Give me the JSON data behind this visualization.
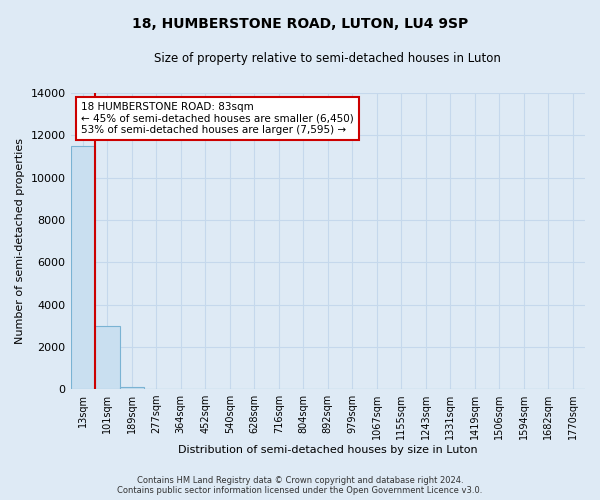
{
  "title": "18, HUMBERSTONE ROAD, LUTON, LU4 9SP",
  "subtitle": "Size of property relative to semi-detached houses in Luton",
  "xlabel": "Distribution of semi-detached houses by size in Luton",
  "ylabel": "Number of semi-detached properties",
  "bar_labels": [
    "13sqm",
    "101sqm",
    "189sqm",
    "277sqm",
    "364sqm",
    "452sqm",
    "540sqm",
    "628sqm",
    "716sqm",
    "804sqm",
    "892sqm",
    "979sqm",
    "1067sqm",
    "1155sqm",
    "1243sqm",
    "1331sqm",
    "1419sqm",
    "1506sqm",
    "1594sqm",
    "1682sqm",
    "1770sqm"
  ],
  "bar_values": [
    11500,
    3000,
    100,
    0,
    0,
    0,
    0,
    0,
    0,
    0,
    0,
    0,
    0,
    0,
    0,
    0,
    0,
    0,
    0,
    0,
    0
  ],
  "bar_color": "#c9dff0",
  "bar_edge_color": "#7ab3d3",
  "ylim": [
    0,
    14000
  ],
  "yticks": [
    0,
    2000,
    4000,
    6000,
    8000,
    10000,
    12000,
    14000
  ],
  "property_line_x": 0.5,
  "annotation_title": "18 HUMBERSTONE ROAD: 83sqm",
  "annotation_line1": "← 45% of semi-detached houses are smaller (6,450)",
  "annotation_line2": "53% of semi-detached houses are larger (7,595) →",
  "annotation_box_facecolor": "#ffffff",
  "annotation_box_edgecolor": "#cc0000",
  "property_line_color": "#cc0000",
  "grid_color": "#c5d8ec",
  "background_color": "#deeaf5",
  "footer_line1": "Contains HM Land Registry data © Crown copyright and database right 2024.",
  "footer_line2": "Contains public sector information licensed under the Open Government Licence v3.0."
}
